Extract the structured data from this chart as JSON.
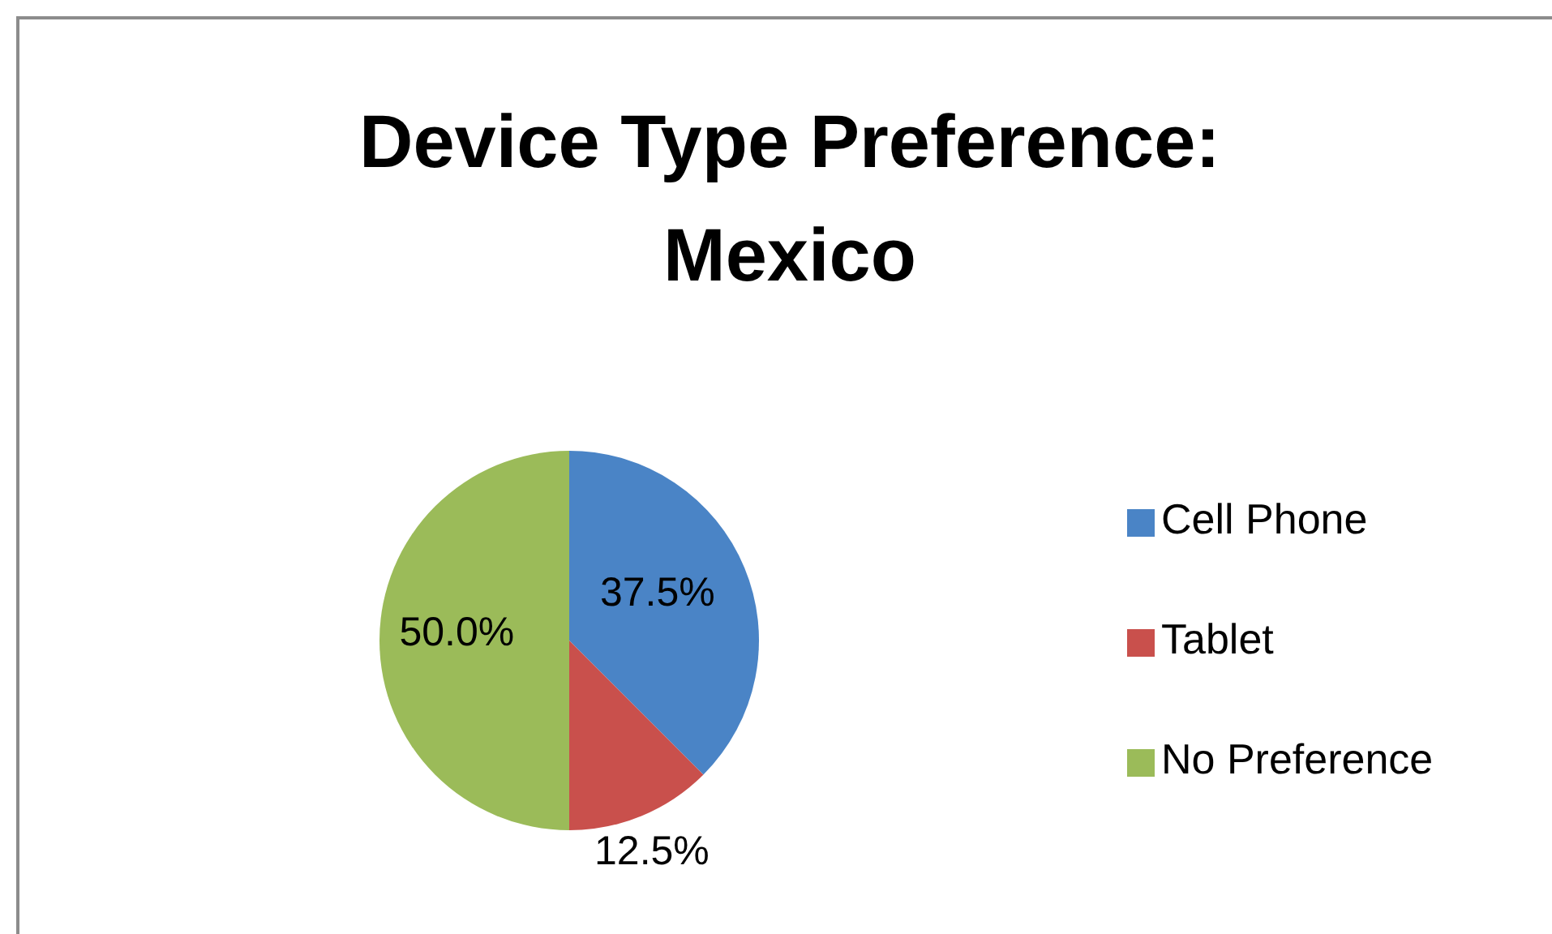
{
  "chart_data": {
    "type": "pie",
    "title": "Device Type Preference: Mexico",
    "categories": [
      "Cell Phone",
      "Tablet",
      "No Preference"
    ],
    "values": [
      37.5,
      12.5,
      50.0
    ],
    "colors": [
      "#4a84c6",
      "#c9504c",
      "#9bbb59"
    ],
    "value_labels": [
      "37.5%",
      "12.5%",
      "50.0%"
    ],
    "legend": "right"
  }
}
